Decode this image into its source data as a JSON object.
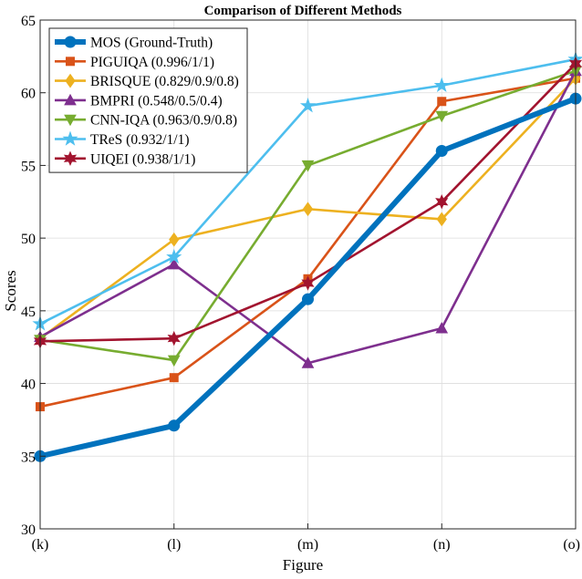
{
  "chart_data": {
    "type": "line",
    "title": "Comparison of Different Methods",
    "xlabel": "Figure",
    "ylabel": "Scores",
    "categories": [
      "(k)",
      "(l)",
      "(m)",
      "(n)",
      "(o)"
    ],
    "ylim": [
      30,
      65
    ],
    "yticks": [
      30,
      35,
      40,
      45,
      50,
      55,
      60,
      65
    ],
    "grid": true,
    "legend_position": "top-left",
    "series": [
      {
        "name": "MOS (Ground-Truth)",
        "color": "#0072BD",
        "marker": "circle",
        "values": [
          35.0,
          37.1,
          45.8,
          56.0,
          59.6
        ]
      },
      {
        "name": "PIGUIQA (0.996/1/1)",
        "color": "#D95319",
        "marker": "square",
        "values": [
          38.4,
          40.4,
          47.2,
          59.4,
          61.0
        ]
      },
      {
        "name": "BRISQUE (0.829/0.9/0.8)",
        "color": "#EDB120",
        "marker": "diamond",
        "values": [
          43.1,
          49.9,
          52.0,
          51.3,
          61.0
        ]
      },
      {
        "name": "BMPRI (0.548/0.5/0.4)",
        "color": "#7E2F8E",
        "marker": "triangle-up",
        "values": [
          43.2,
          48.2,
          41.4,
          43.8,
          61.5
        ]
      },
      {
        "name": "CNN-IQA (0.963/0.9/0.8)",
        "color": "#77AC30",
        "marker": "triangle-down",
        "values": [
          43.0,
          41.6,
          55.0,
          58.4,
          61.5
        ]
      },
      {
        "name": "TReS (0.932/1/1)",
        "color": "#4DBEEE",
        "marker": "star",
        "values": [
          44.1,
          48.7,
          59.1,
          60.5,
          62.3
        ]
      },
      {
        "name": "UIQEI (0.938/1/1)",
        "color": "#A2142F",
        "marker": "hexagram",
        "values": [
          42.9,
          43.1,
          46.9,
          52.5,
          62.0
        ]
      }
    ]
  }
}
